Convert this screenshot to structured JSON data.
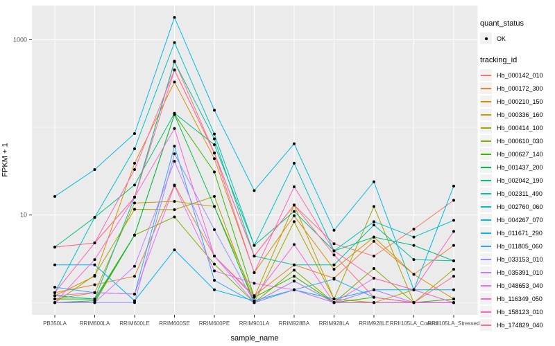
{
  "chart_data": {
    "type": "line",
    "title": "",
    "xlabel": "sample_name",
    "ylabel": "FPKM + 1",
    "y_scale": "log10",
    "y_tick_labels": [
      "1000",
      "10"
    ],
    "y_major_ticks": [
      1000,
      10
    ],
    "y_minor_gridlines": [
      100,
      1
    ],
    "ylim": [
      0.72,
      2450
    ],
    "grid": "on",
    "panel_bg": "#EBEBEB",
    "grid_color": "#FFFFFF",
    "tick_text_color": "#4D4D4D",
    "point_color": "#000000",
    "categories": [
      "PB350LA",
      "RRIM600LA",
      "RRIM600LE",
      "RRIM600SE",
      "RRIM600PE",
      "RRIM901LA",
      "RRIM928BA",
      "RRIM928LA",
      "RRIM928LE",
      "RRII105LA_Control",
      "RRII105LA_Stressed"
    ],
    "series": [
      {
        "name": "Hb_000142_010",
        "color": "#F8766D",
        "values": [
          4.3,
          4.8,
          16,
          570,
          51,
          3.4,
          13,
          4.7,
          3.4,
          6.9,
          14.7
        ]
      },
      {
        "name": "Hb_000172_300",
        "color": "#EA8331",
        "values": [
          1.3,
          1.6,
          2.0,
          22,
          3.4,
          1.2,
          2.7,
          1.9,
          5.0,
          2.1,
          4.5
        ]
      },
      {
        "name": "Hb_000210_150",
        "color": "#D89000",
        "values": [
          1.2,
          2.0,
          39,
          330,
          44,
          2.2,
          9.8,
          2.4,
          5.6,
          2.1,
          1.1
        ]
      },
      {
        "name": "Hb_000336_160",
        "color": "#C09B00",
        "values": [
          1.1,
          1.3,
          13.7,
          14.3,
          12.5,
          1.15,
          13,
          1.1,
          1.0,
          1.4,
          1.0
        ]
      },
      {
        "name": "Hb_000414_100",
        "color": "#A3A500",
        "values": [
          1.0,
          2.05,
          11.6,
          11.5,
          16.3,
          1.0,
          8.4,
          1.1,
          12.5,
          1.0,
          2.4
        ]
      },
      {
        "name": "Hb_000610_030",
        "color": "#7CAE00",
        "values": [
          1.0,
          1.0,
          5.9,
          9.5,
          2.75,
          1.0,
          2.35,
          1.0,
          2.45,
          1.0,
          1.0
        ]
      },
      {
        "name": "Hb_000627_140",
        "color": "#39B600",
        "values": [
          1.1,
          1.1,
          5.9,
          141,
          31,
          1.15,
          2.0,
          1.0,
          1.15,
          1.0,
          1.1
        ]
      },
      {
        "name": "Hb_001437_200",
        "color": "#00BB4E",
        "values": [
          1.0,
          1.05,
          5.9,
          140,
          12.5,
          1.0,
          1.76,
          1.0,
          1.0,
          1.0,
          1.0
        ]
      },
      {
        "name": "Hb_002042_190",
        "color": "#00BF7D",
        "values": [
          4.3,
          9.4,
          22,
          145,
          63.5,
          4.5,
          11,
          3.9,
          5.6,
          4.5,
          3.0
        ]
      },
      {
        "name": "Hb_002311_490",
        "color": "#00C1A3",
        "values": [
          1.2,
          1.1,
          16,
          560,
          74,
          3.4,
          2.7,
          2.7,
          7.7,
          3.1,
          3.0
        ]
      },
      {
        "name": "Hb_002760_060",
        "color": "#00BFC4",
        "values": [
          1.3,
          9.4,
          57,
          930,
          84,
          4.5,
          39,
          3.9,
          8.4,
          5.6,
          8.7
        ]
      },
      {
        "name": "Hb_004267_070",
        "color": "#00BAE0",
        "values": [
          16.3,
          33,
          85,
          1800,
          157,
          19,
          65,
          6.7,
          24,
          1.4,
          21.4
        ]
      },
      {
        "name": "Hb_011671_290",
        "color": "#00B0F6",
        "values": [
          2.7,
          2.7,
          1.05,
          4.0,
          1.4,
          1.05,
          1.4,
          1.1,
          1.4,
          1.4,
          1.4
        ]
      },
      {
        "name": "Hb_011805_060",
        "color": "#35A2FF",
        "values": [
          1.5,
          1.3,
          1.25,
          61,
          1.8,
          1.0,
          1.4,
          1.85,
          1.15,
          1.0,
          1.0
        ]
      },
      {
        "name": "Hb_033153_010",
        "color": "#9590FF",
        "values": [
          1.0,
          1.0,
          1.0,
          50,
          6.8,
          1.0,
          1.4,
          1.0,
          1.4,
          1.0,
          1.0
        ]
      },
      {
        "name": "Hb_035391_010",
        "color": "#C77CFF",
        "values": [
          1.0,
          1.0,
          2.6,
          41,
          3.4,
          1.0,
          1.76,
          1.0,
          1.4,
          1.0,
          1.0
        ]
      },
      {
        "name": "Hb_048653_040",
        "color": "#E76BF3",
        "values": [
          1.2,
          1.3,
          1.25,
          21.6,
          2.3,
          1.66,
          1.4,
          1.0,
          1.9,
          1.4,
          1.0
        ]
      },
      {
        "name": "Hb_116349_050",
        "color": "#FA62DB",
        "values": [
          1.0,
          3.1,
          16,
          97,
          3.4,
          1.15,
          4.6,
          1.0,
          1.0,
          1.0,
          1.0
        ]
      },
      {
        "name": "Hb_158123_010",
        "color": "#FF62BC",
        "values": [
          1.3,
          4.8,
          33,
          453,
          51,
          2.2,
          21,
          3.9,
          1.9,
          1.4,
          6.5
        ]
      },
      {
        "name": "Hb_174829_040",
        "color": "#FF6A98",
        "values": [
          4.3,
          4.8,
          16,
          450,
          51,
          3.4,
          13,
          3.5,
          1.15,
          1.0,
          2.0
        ]
      }
    ],
    "legend": {
      "quant_status_title": "quant_status",
      "quant_status_items": [
        {
          "label": "OK",
          "marker": "point"
        }
      ],
      "tracking_id_title": "tracking_id",
      "position": "right"
    }
  }
}
